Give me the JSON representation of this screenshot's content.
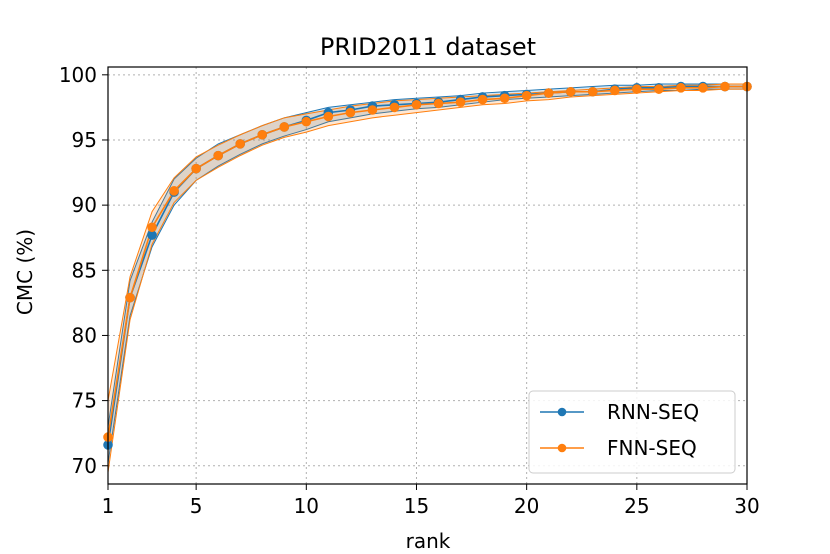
{
  "chart_data": {
    "type": "line",
    "title": "PRID2011 dataset",
    "xlabel": "rank",
    "ylabel": "CMC (%)",
    "xlim": [
      1,
      30
    ],
    "ylim": [
      68.6,
      100.6
    ],
    "xticks": [
      1,
      5,
      10,
      15,
      20,
      25,
      30
    ],
    "yticks": [
      70,
      75,
      80,
      85,
      90,
      95,
      100
    ],
    "grid": true,
    "legend_position": "bottom-right",
    "colors": {
      "RNN-SEQ": "#1f77b4",
      "FNN-SEQ": "#ff7f0e"
    },
    "x": [
      1,
      2,
      3,
      4,
      5,
      6,
      7,
      8,
      9,
      10,
      11,
      12,
      13,
      14,
      15,
      16,
      17,
      18,
      19,
      20,
      21,
      22,
      23,
      24,
      25,
      26,
      27,
      28,
      29,
      30
    ],
    "series": [
      {
        "name": "RNN-SEQ",
        "color": "#1f77b4",
        "values": [
          71.6,
          82.9,
          87.7,
          91.0,
          92.8,
          93.8,
          94.7,
          95.4,
          96.0,
          96.5,
          97.1,
          97.3,
          97.6,
          97.7,
          97.8,
          97.9,
          98.1,
          98.3,
          98.4,
          98.5,
          98.6,
          98.7,
          98.7,
          98.9,
          99.0,
          99.0,
          99.1,
          99.1,
          99.1,
          99.1
        ],
        "band": [
          [
            70.2,
            73.0
          ],
          [
            81.5,
            84.2
          ],
          [
            86.8,
            88.7
          ],
          [
            90.0,
            92.0
          ],
          [
            91.9,
            93.6
          ],
          [
            93.0,
            94.7
          ],
          [
            93.9,
            95.4
          ],
          [
            94.7,
            96.1
          ],
          [
            95.3,
            96.7
          ],
          [
            95.8,
            97.1
          ],
          [
            96.4,
            97.5
          ],
          [
            96.7,
            97.7
          ],
          [
            97.0,
            97.9
          ],
          [
            97.2,
            98.1
          ],
          [
            97.4,
            98.2
          ],
          [
            97.5,
            98.3
          ],
          [
            97.7,
            98.4
          ],
          [
            97.9,
            98.6
          ],
          [
            98.1,
            98.7
          ],
          [
            98.2,
            98.8
          ],
          [
            98.3,
            98.9
          ],
          [
            98.4,
            99.0
          ],
          [
            98.5,
            99.1
          ],
          [
            98.6,
            99.2
          ],
          [
            98.7,
            99.2
          ],
          [
            98.8,
            99.3
          ],
          [
            98.8,
            99.3
          ],
          [
            98.9,
            99.3
          ],
          [
            98.9,
            99.3
          ],
          [
            98.9,
            99.3
          ]
        ]
      },
      {
        "name": "FNN-SEQ",
        "color": "#ff7f0e",
        "values": [
          72.2,
          82.9,
          88.3,
          91.1,
          92.8,
          93.8,
          94.7,
          95.4,
          96.0,
          96.4,
          96.8,
          97.1,
          97.3,
          97.5,
          97.7,
          97.8,
          97.9,
          98.1,
          98.2,
          98.4,
          98.6,
          98.7,
          98.7,
          98.8,
          98.9,
          98.9,
          99.0,
          99.0,
          99.1,
          99.1
        ],
        "band": [
          [
            69.5,
            75.0
          ],
          [
            81.2,
            84.5
          ],
          [
            87.0,
            89.5
          ],
          [
            90.2,
            92.1
          ],
          [
            91.9,
            93.7
          ],
          [
            92.9,
            94.6
          ],
          [
            93.8,
            95.4
          ],
          [
            94.6,
            96.1
          ],
          [
            95.2,
            96.7
          ],
          [
            95.6,
            97.0
          ],
          [
            96.1,
            97.3
          ],
          [
            96.4,
            97.6
          ],
          [
            96.7,
            97.8
          ],
          [
            96.9,
            98.0
          ],
          [
            97.1,
            98.1
          ],
          [
            97.3,
            98.2
          ],
          [
            97.5,
            98.3
          ],
          [
            97.7,
            98.4
          ],
          [
            97.8,
            98.5
          ],
          [
            98.0,
            98.6
          ],
          [
            98.1,
            98.7
          ],
          [
            98.3,
            98.8
          ],
          [
            98.4,
            98.9
          ],
          [
            98.5,
            99.0
          ],
          [
            98.6,
            99.1
          ],
          [
            98.7,
            99.1
          ],
          [
            98.8,
            99.2
          ],
          [
            98.8,
            99.2
          ],
          [
            98.9,
            99.3
          ],
          [
            98.9,
            99.3
          ]
        ]
      }
    ]
  }
}
